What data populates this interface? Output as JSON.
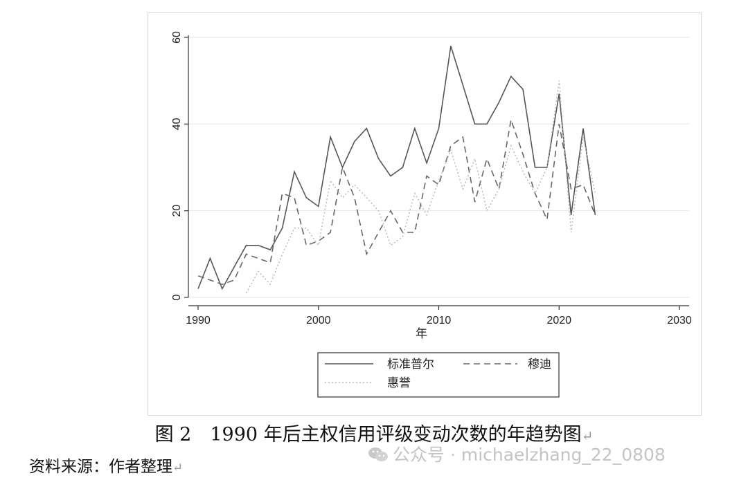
{
  "chart_data": {
    "type": "line",
    "xlabel": "年",
    "ylabel": "",
    "xlim": [
      1990,
      2030
    ],
    "ylim": [
      0,
      60
    ],
    "xticks": [
      1990,
      2000,
      2010,
      2020,
      2030
    ],
    "yticks": [
      0,
      20,
      40,
      60
    ],
    "grid": true,
    "legend_position": "bottom",
    "series": [
      {
        "name": "标准普尔",
        "style": "solid",
        "color": "#555555",
        "x": [
          1990,
          1991,
          1992,
          1993,
          1994,
          1995,
          1996,
          1997,
          1998,
          1999,
          2000,
          2001,
          2002,
          2003,
          2004,
          2005,
          2006,
          2007,
          2008,
          2009,
          2010,
          2011,
          2012,
          2013,
          2014,
          2015,
          2016,
          2017,
          2018,
          2019,
          2020,
          2021,
          2022,
          2023
        ],
        "values": [
          2,
          9,
          2,
          7,
          12,
          12,
          11,
          16,
          29,
          23,
          21,
          37,
          30,
          36,
          39,
          32,
          28,
          30,
          39,
          31,
          39,
          58,
          49,
          40,
          40,
          45,
          51,
          48,
          30,
          30,
          47,
          19,
          39,
          19
        ]
      },
      {
        "name": "穆迪",
        "style": "dashed",
        "color": "#666666",
        "x": [
          1990,
          1991,
          1992,
          1993,
          1994,
          1995,
          1996,
          1997,
          1998,
          1999,
          2000,
          2001,
          2002,
          2003,
          2004,
          2005,
          2006,
          2007,
          2008,
          2009,
          2010,
          2011,
          2012,
          2013,
          2014,
          2015,
          2016,
          2017,
          2018,
          2019,
          2020,
          2021,
          2022,
          2023
        ],
        "values": [
          5,
          4,
          3,
          4,
          10,
          9,
          8,
          24,
          23,
          12,
          13,
          15,
          30,
          23,
          10,
          15,
          20,
          15,
          15,
          28,
          26,
          35,
          37,
          22,
          32,
          25,
          41,
          33,
          24,
          18,
          40,
          25,
          26,
          19
        ]
      },
      {
        "name": "惠誉",
        "style": "dotted",
        "color": "#b5b5b5",
        "x": [
          1994,
          1995,
          1996,
          1997,
          1998,
          1999,
          2000,
          2001,
          2002,
          2003,
          2004,
          2005,
          2006,
          2007,
          2008,
          2009,
          2010,
          2011,
          2012,
          2013,
          2014,
          2015,
          2016,
          2017,
          2018,
          2019,
          2020,
          2021,
          2022,
          2023
        ],
        "values": [
          1,
          6,
          3,
          10,
          16,
          16,
          12,
          27,
          23,
          26,
          23,
          20,
          12,
          14,
          24,
          19,
          27,
          34,
          25,
          32,
          20,
          25,
          35,
          29,
          24,
          30,
          50,
          15,
          37,
          24
        ]
      }
    ]
  },
  "caption": "图 2　1990 年后主权信用评级变动次数的年趋势图",
  "caption_mark": "↵",
  "source": "资料来源：作者整理",
  "source_mark": "↵",
  "watermark": "公众号 · michaelzhang_22_0808"
}
